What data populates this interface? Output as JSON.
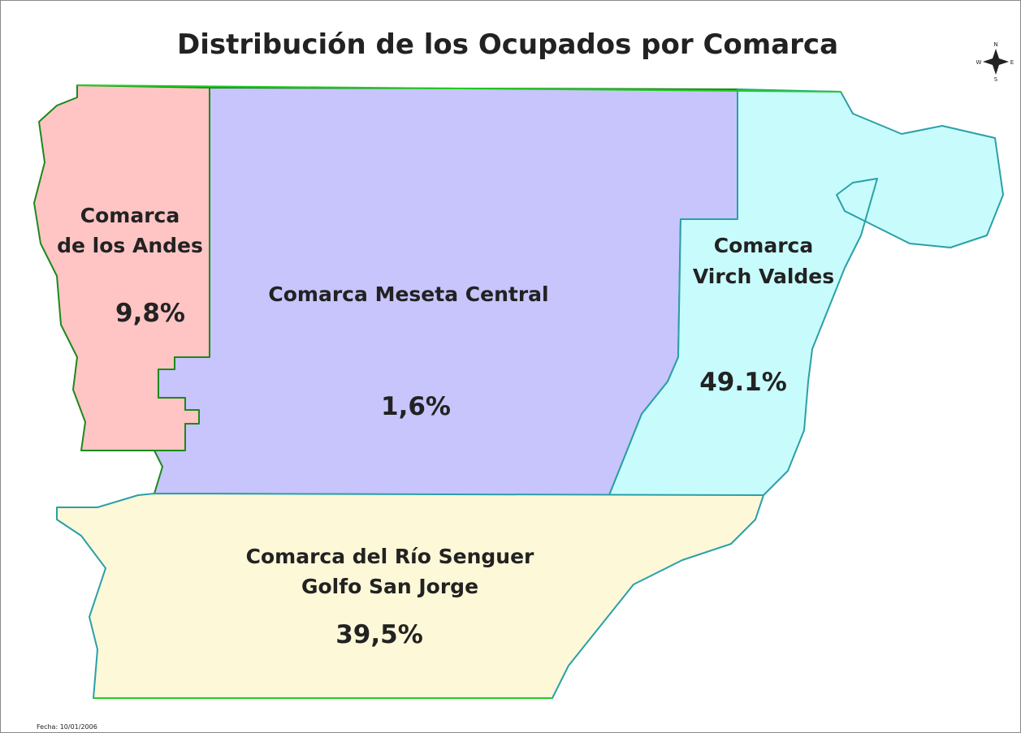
{
  "title": "Distribución de los Ocupados por Comarca",
  "regions": [
    {
      "name": [
        "Comarca",
        "de los Andes"
      ],
      "value": "9,8%",
      "color": "#ffc4c4"
    },
    {
      "name": [
        "Comarca Meseta Central"
      ],
      "value": "1,6%",
      "color": "#c8c4fc"
    },
    {
      "name": [
        "Comarca",
        "Virch Valdes"
      ],
      "value": "49.1%",
      "color": "#c8fcfc"
    },
    {
      "name": [
        "Comarca del Río Senguer",
        "Golfo San Jorge"
      ],
      "value": "39,5%",
      "color": "#fcf8d8"
    }
  ],
  "compass": {
    "n": "N",
    "s": "S",
    "e": "E",
    "w": "W"
  },
  "date": "Fecha: 10/01/2006"
}
